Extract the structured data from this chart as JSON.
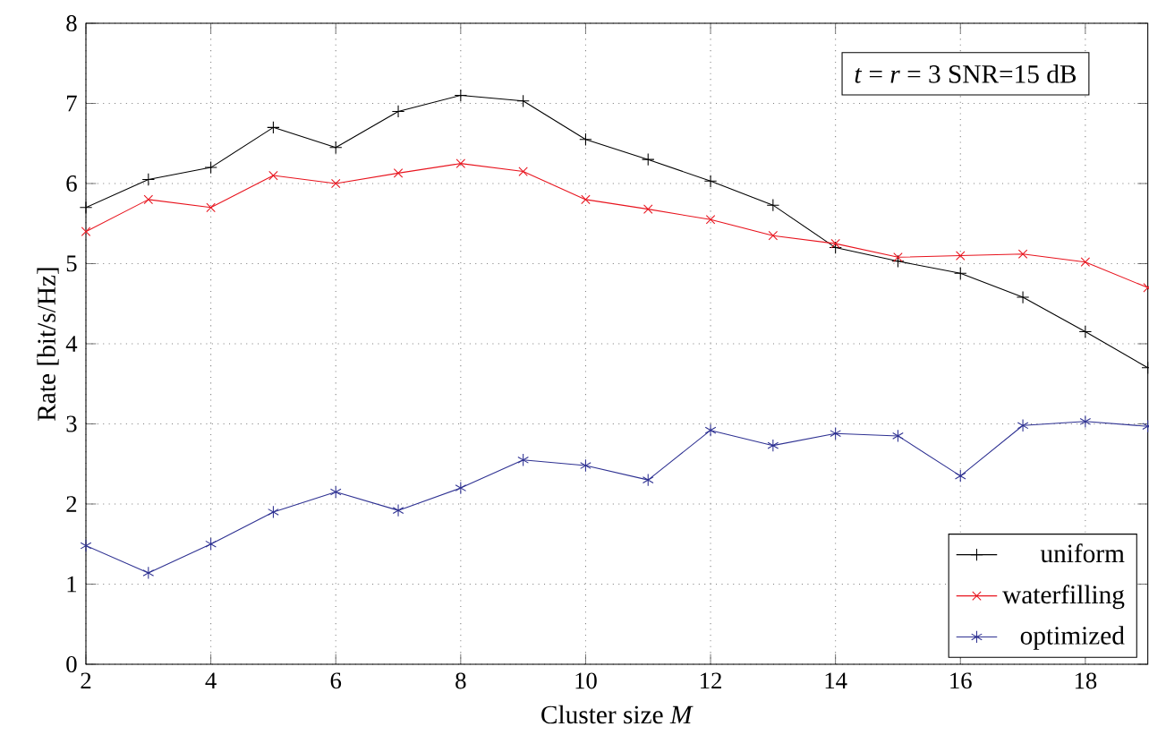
{
  "chart_data": {
    "type": "line",
    "xlabel": "Cluster size *M*",
    "ylabel": "Rate [bit/s/Hz]",
    "annotations": [
      "*t* = *r* = 3    SNR=15 dB"
    ],
    "x": [
      2,
      3,
      4,
      5,
      6,
      7,
      8,
      9,
      10,
      11,
      12,
      13,
      14,
      15,
      16,
      17,
      18,
      19
    ],
    "series": [
      {
        "name": "uniform",
        "color": "#000000",
        "marker": "plus",
        "values": [
          5.7,
          6.05,
          6.2,
          6.7,
          6.45,
          6.9,
          7.1,
          7.03,
          6.55,
          6.3,
          6.03,
          5.73,
          5.2,
          5.03,
          4.88,
          4.58,
          4.15,
          3.7
        ]
      },
      {
        "name": "waterfilling",
        "color": "#e8141e",
        "marker": "x",
        "values": [
          5.4,
          5.8,
          5.7,
          6.1,
          6.0,
          6.13,
          6.25,
          6.15,
          5.8,
          5.68,
          5.55,
          5.35,
          5.25,
          5.08,
          5.1,
          5.12,
          5.02,
          4.7
        ]
      },
      {
        "name": "optimized",
        "color": "#2e3192",
        "marker": "cross",
        "values": [
          1.48,
          1.14,
          1.5,
          1.9,
          2.15,
          1.92,
          2.2,
          2.55,
          2.48,
          2.3,
          2.92,
          2.73,
          2.88,
          2.85,
          2.35,
          2.98,
          3.03,
          2.97
        ]
      }
    ],
    "xlim": [
      2,
      19
    ],
    "xticks": [
      2,
      4,
      6,
      8,
      10,
      12,
      14,
      16,
      18
    ],
    "ylim": [
      0,
      8
    ],
    "yticks": [
      0,
      1,
      2,
      3,
      4,
      5,
      6,
      7,
      8
    ],
    "grid": true,
    "legend": "bottom right",
    "line_style": "solid"
  }
}
